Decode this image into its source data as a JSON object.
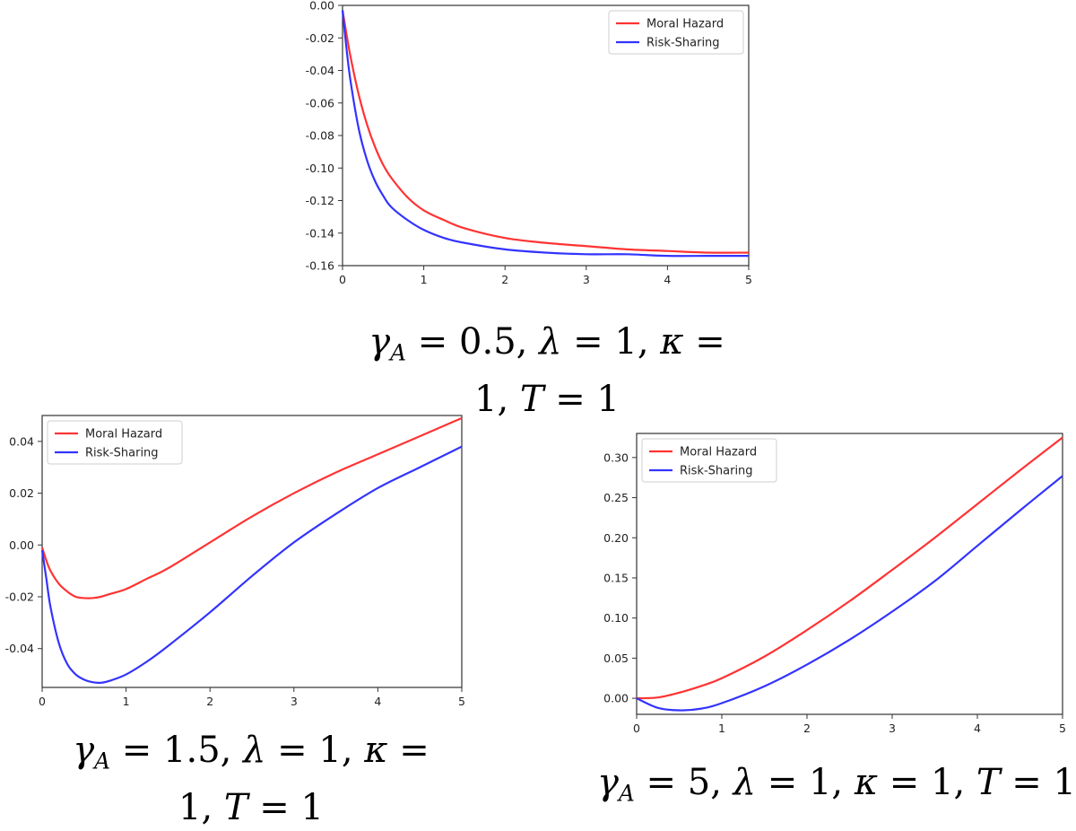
{
  "chart_data": [
    {
      "type": "line",
      "xlim": [
        0,
        5
      ],
      "ylim": [
        -0.16,
        0.0
      ],
      "xticks": [
        "0",
        "1",
        "2",
        "3",
        "4",
        "5"
      ],
      "yticks": [
        "0.00",
        "-0.02",
        "-0.04",
        "-0.06",
        "-0.08",
        "-0.10",
        "-0.12",
        "-0.14",
        "-0.16"
      ],
      "legend": "top-right",
      "grid": false,
      "x": [
        0,
        0.05,
        0.1,
        0.2,
        0.3,
        0.4,
        0.5,
        0.6,
        0.8,
        1.0,
        1.25,
        1.5,
        2.0,
        2.5,
        3.0,
        3.5,
        4.0,
        4.5,
        5.0
      ],
      "series": [
        {
          "name": "Moral Hazard",
          "color": "#ff3333",
          "values": [
            -0.003,
            -0.018,
            -0.032,
            -0.055,
            -0.073,
            -0.087,
            -0.098,
            -0.106,
            -0.118,
            -0.126,
            -0.132,
            -0.137,
            -0.143,
            -0.146,
            -0.148,
            -0.15,
            -0.151,
            -0.152,
            -0.152
          ]
        },
        {
          "name": "Risk-Sharing",
          "color": "#3333ff",
          "values": [
            -0.003,
            -0.027,
            -0.047,
            -0.076,
            -0.095,
            -0.108,
            -0.117,
            -0.124,
            -0.132,
            -0.138,
            -0.143,
            -0.146,
            -0.15,
            -0.152,
            -0.153,
            -0.153,
            -0.154,
            -0.154,
            -0.154
          ]
        }
      ]
    },
    {
      "type": "line",
      "xlim": [
        0,
        5
      ],
      "ylim": [
        -0.055,
        0.05
      ],
      "xticks": [
        "0",
        "1",
        "2",
        "3",
        "4",
        "5"
      ],
      "yticks": [
        "0.04",
        "0.02",
        "0.00",
        "-0.02",
        "-0.04"
      ],
      "legend": "top-left",
      "grid": false,
      "x": [
        0,
        0.05,
        0.1,
        0.2,
        0.3,
        0.4,
        0.5,
        0.6,
        0.7,
        0.8,
        1.0,
        1.25,
        1.5,
        2.0,
        2.5,
        3.0,
        3.5,
        4.0,
        4.5,
        5.0
      ],
      "series": [
        {
          "name": "Moral Hazard",
          "color": "#ff3333",
          "values": [
            -0.001,
            -0.006,
            -0.01,
            -0.015,
            -0.018,
            -0.02,
            -0.0205,
            -0.0205,
            -0.02,
            -0.019,
            -0.017,
            -0.013,
            -0.009,
            0.001,
            0.011,
            0.02,
            0.028,
            0.035,
            0.042,
            0.049
          ]
        },
        {
          "name": "Risk-Sharing",
          "color": "#3333ff",
          "values": [
            -0.002,
            -0.013,
            -0.024,
            -0.038,
            -0.046,
            -0.05,
            -0.052,
            -0.053,
            -0.0532,
            -0.0525,
            -0.05,
            -0.045,
            -0.039,
            -0.026,
            -0.012,
            0.001,
            0.012,
            0.022,
            0.03,
            0.038
          ]
        }
      ]
    },
    {
      "type": "line",
      "xlim": [
        0,
        5
      ],
      "ylim": [
        -0.02,
        0.33
      ],
      "xticks": [
        "0",
        "1",
        "2",
        "3",
        "4",
        "5"
      ],
      "yticks": [
        "0.30",
        "0.25",
        "0.20",
        "0.15",
        "0.10",
        "0.05",
        "0.00"
      ],
      "legend": "top-left",
      "grid": false,
      "x": [
        0,
        0.25,
        0.5,
        0.75,
        1.0,
        1.5,
        2.0,
        2.5,
        3.0,
        3.5,
        4.0,
        4.5,
        5.0
      ],
      "series": [
        {
          "name": "Moral Hazard",
          "color": "#ff3333",
          "values": [
            0.0,
            0.001,
            0.007,
            0.015,
            0.025,
            0.052,
            0.085,
            0.121,
            0.16,
            0.2,
            0.242,
            0.284,
            0.325
          ]
        },
        {
          "name": "Risk-Sharing",
          "color": "#3333ff",
          "values": [
            0.0,
            -0.012,
            -0.015,
            -0.013,
            -0.006,
            0.015,
            0.042,
            0.073,
            0.108,
            0.146,
            0.19,
            0.234,
            0.277
          ]
        }
      ]
    }
  ],
  "captions": [
    {
      "line1": {
        "gamma": "γ",
        "sub": "A",
        "rest": " = 0.5, ",
        "lambda": "λ",
        "eq1": " = 1, ",
        "kappa": "κ",
        "eq2": " ="
      },
      "line2": {
        "one": "1, ",
        "T": "T",
        "eq": " = 1"
      }
    },
    {
      "line1": {
        "gamma": "γ",
        "sub": "A",
        "rest": " = 1.5, ",
        "lambda": "λ",
        "eq1": " = 1, ",
        "kappa": "κ",
        "eq2": " ="
      },
      "line2": {
        "one": "1, ",
        "T": "T",
        "eq": " = 1"
      }
    },
    {
      "line1": {
        "gamma": "γ",
        "sub": "A",
        "rest": " = 5, ",
        "lambda": "λ",
        "eq1": " = 1, ",
        "kappa": "κ",
        "eq2": " = 1, ",
        "T": "T",
        "eq3": " = 1"
      }
    }
  ]
}
